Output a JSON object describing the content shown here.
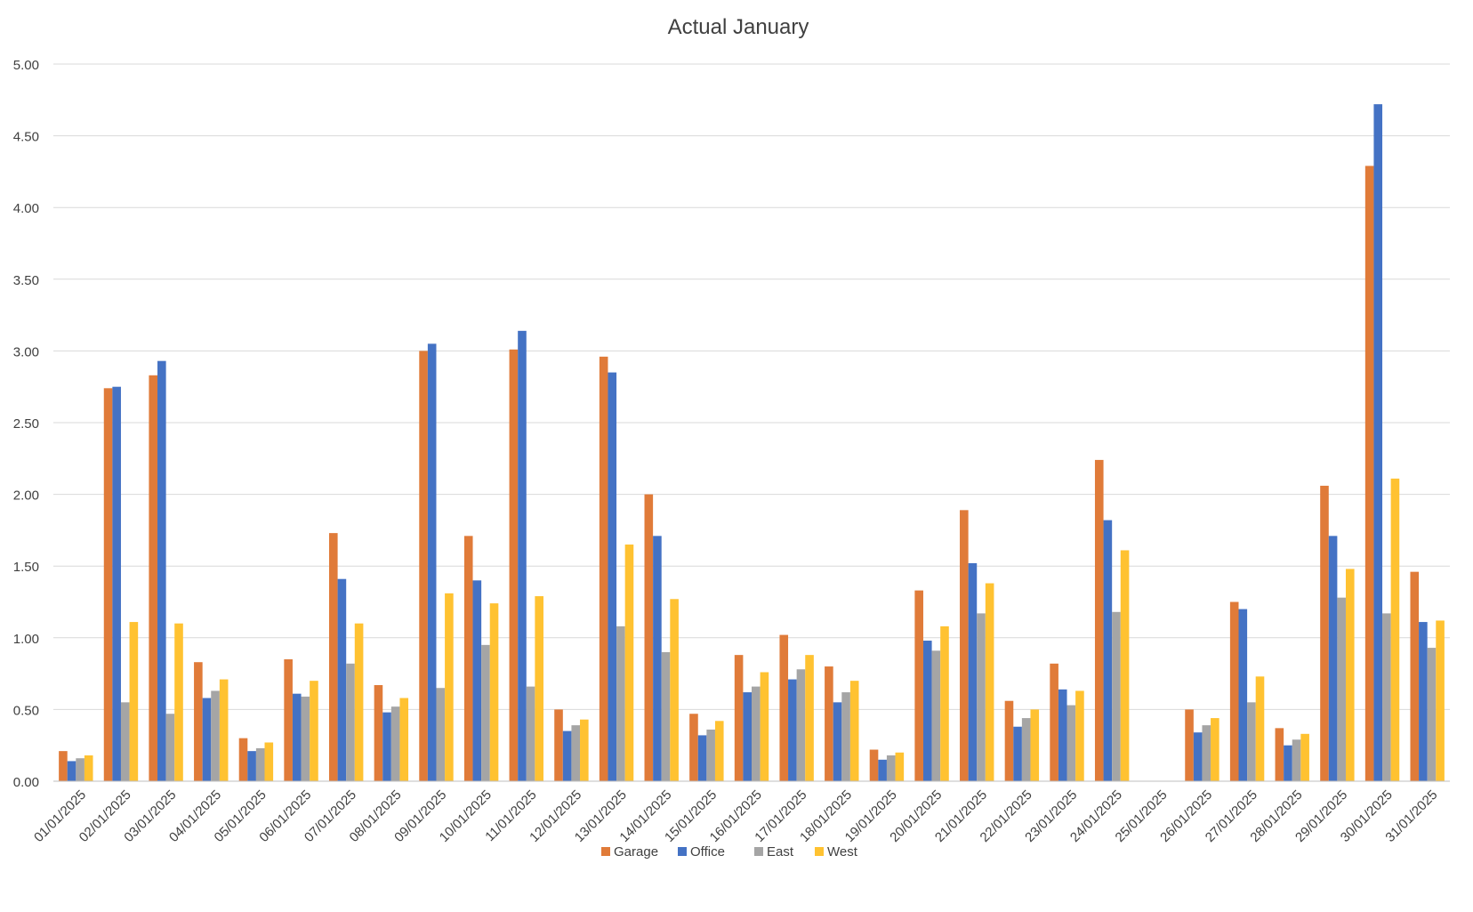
{
  "chart_data": {
    "type": "bar",
    "title": "Actual January",
    "xlabel": "",
    "ylabel": "",
    "ylim": [
      0,
      5
    ],
    "yticks": [
      "0.00",
      "0.50",
      "1.00",
      "1.50",
      "2.00",
      "2.50",
      "3.00",
      "3.50",
      "4.00",
      "4.50",
      "5.00"
    ],
    "grid": true,
    "legend_position": "bottom",
    "categories": [
      "01/01/2025",
      "02/01/2025",
      "03/01/2025",
      "04/01/2025",
      "05/01/2025",
      "06/01/2025",
      "07/01/2025",
      "08/01/2025",
      "09/01/2025",
      "10/01/2025",
      "11/01/2025",
      "12/01/2025",
      "13/01/2025",
      "14/01/2025",
      "15/01/2025",
      "16/01/2025",
      "17/01/2025",
      "18/01/2025",
      "19/01/2025",
      "20/01/2025",
      "21/01/2025",
      "22/01/2025",
      "23/01/2025",
      "24/01/2025",
      "25/01/2025",
      "26/01/2025",
      "27/01/2025",
      "28/01/2025",
      "29/01/2025",
      "30/01/2025",
      "31/01/2025"
    ],
    "series": [
      {
        "name": "Garage",
        "color": "#E07B39",
        "values": [
          0.21,
          2.74,
          2.83,
          0.83,
          0.3,
          0.85,
          1.73,
          0.67,
          3.0,
          1.71,
          3.01,
          0.5,
          2.96,
          2.0,
          0.47,
          0.88,
          1.02,
          0.8,
          0.22,
          1.33,
          1.89,
          0.56,
          0.82,
          2.24,
          null,
          0.5,
          1.25,
          0.37,
          2.06,
          4.29,
          1.46
        ]
      },
      {
        "name": "Office",
        "color": "#4472C4",
        "values": [
          0.14,
          2.75,
          2.93,
          0.58,
          0.21,
          0.61,
          1.41,
          0.48,
          3.05,
          1.4,
          3.14,
          0.35,
          2.85,
          1.71,
          0.32,
          0.62,
          0.71,
          0.55,
          0.15,
          0.98,
          1.52,
          0.38,
          0.64,
          1.82,
          null,
          0.34,
          1.2,
          0.25,
          1.71,
          4.72,
          1.11
        ]
      },
      {
        "name": "East",
        "color": "#A5A5A5",
        "values": [
          0.16,
          0.55,
          0.47,
          0.63,
          0.23,
          0.59,
          0.82,
          0.52,
          0.65,
          0.95,
          0.66,
          0.39,
          1.08,
          0.9,
          0.36,
          0.66,
          0.78,
          0.62,
          0.18,
          0.91,
          1.17,
          0.44,
          0.53,
          1.18,
          null,
          0.39,
          0.55,
          0.29,
          1.28,
          1.17,
          0.93
        ]
      },
      {
        "name": "West",
        "color": "#FFC231",
        "values": [
          0.18,
          1.11,
          1.1,
          0.71,
          0.27,
          0.7,
          1.1,
          0.58,
          1.31,
          1.24,
          1.29,
          0.43,
          1.65,
          1.27,
          0.42,
          0.76,
          0.88,
          0.7,
          0.2,
          1.08,
          1.38,
          0.5,
          0.63,
          1.61,
          null,
          0.44,
          0.73,
          0.33,
          1.48,
          2.11,
          1.12
        ]
      }
    ]
  }
}
